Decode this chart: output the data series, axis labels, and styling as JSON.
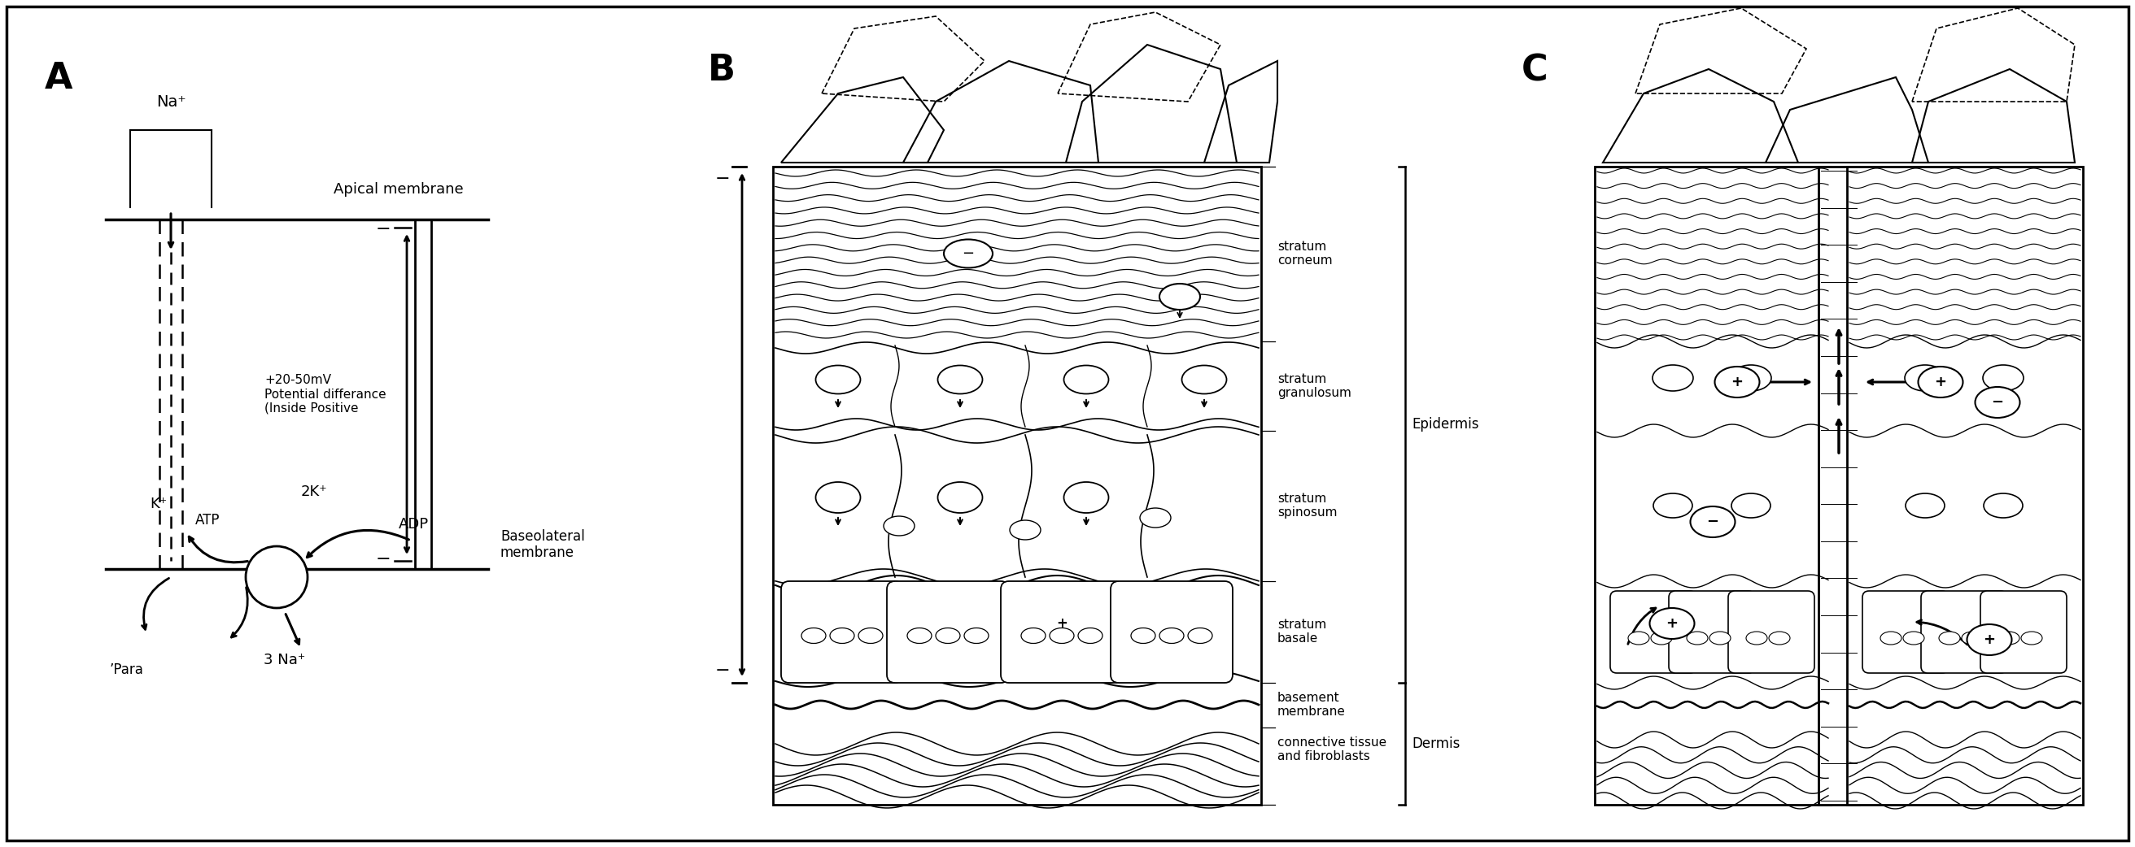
{
  "fig_width": 26.24,
  "fig_height": 10.42,
  "panel_A": "A",
  "panel_B": "B",
  "panel_C": "C",
  "apical_membrane": "Apical membrane",
  "baseolateral_membrane": "Baseolateral\nmembrane",
  "na_plus": "Na⁺",
  "k_plus": "K⁺",
  "atp": "ATP",
  "two_k_plus": "2K⁺",
  "adp": "ADP",
  "para": "’Para",
  "three_na_plus": "3 Na⁺",
  "potential_text": "+20-50mV\nPotential differance\n(Inside Positive",
  "stratum_corneum": "stratum\ncorneum",
  "stratum_granulosum": "stratum\ngranulosum",
  "stratum_spinosum": "stratum\nspinosum",
  "stratum_basale": "stratum\nbasale",
  "basement_membrane": "basement\nmembrane",
  "connective_tissue": "connective tissue\nand fibroblasts",
  "epidermis": "Epidermis",
  "dermis": "Dermis"
}
